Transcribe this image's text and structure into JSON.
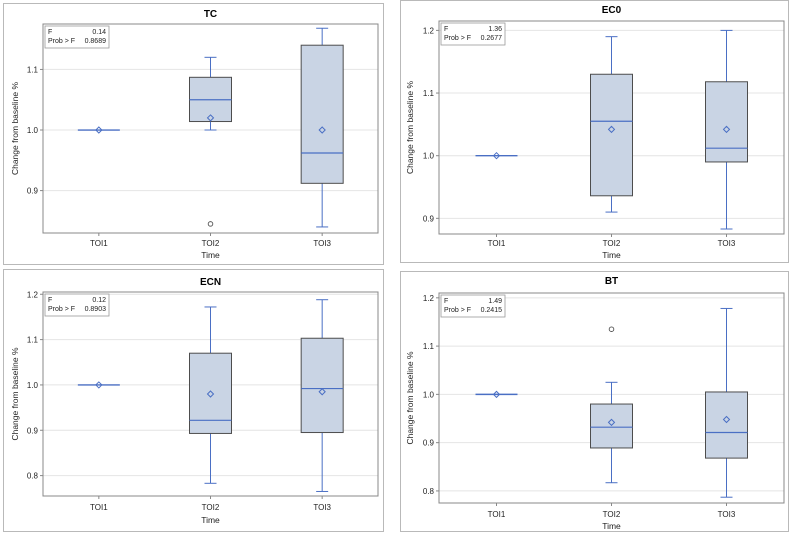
{
  "chart_data": [
    {
      "type": "box",
      "title": "TC",
      "xlabel": "Time",
      "ylabel": "Change from baseline %",
      "categories": [
        "TOI1",
        "TOI2",
        "TOI3"
      ],
      "ylim": [
        0.83,
        1.175
      ],
      "yticks": [
        "0.9",
        "1.0",
        "1.1"
      ],
      "ytick_values": [
        0.9,
        1.0,
        1.1
      ],
      "stats_labels": [
        "F",
        "Prob > F"
      ],
      "stats_values": [
        "0.14",
        "0.8689"
      ],
      "boxes": [
        {
          "min": 1.0,
          "q1": 1.0,
          "median": 1.0,
          "q3": 1.0,
          "max": 1.0,
          "mean": 1.0,
          "outliers": []
        },
        {
          "min": 1.0,
          "q1": 1.014,
          "median": 1.05,
          "q3": 1.087,
          "max": 1.12,
          "mean": 1.02,
          "outliers": [
            0.845
          ]
        },
        {
          "min": 0.84,
          "q1": 0.912,
          "median": 0.962,
          "q3": 1.14,
          "max": 1.168,
          "mean": 1.0,
          "outliers": []
        }
      ]
    },
    {
      "type": "box",
      "title": "EC0",
      "xlabel": "Time",
      "ylabel": "Change from baseline %",
      "categories": [
        "TOI1",
        "TOI2",
        "TOI3"
      ],
      "ylim": [
        0.875,
        1.215
      ],
      "yticks": [
        "0.9",
        "1.0",
        "1.1",
        "1.2"
      ],
      "ytick_values": [
        0.9,
        1.0,
        1.1,
        1.2
      ],
      "stats_labels": [
        "F",
        "Prob > F"
      ],
      "stats_values": [
        "1.36",
        "0.2677"
      ],
      "boxes": [
        {
          "min": 1.0,
          "q1": 1.0,
          "median": 1.0,
          "q3": 1.0,
          "max": 1.0,
          "mean": 1.0,
          "outliers": []
        },
        {
          "min": 0.91,
          "q1": 0.936,
          "median": 1.055,
          "q3": 1.13,
          "max": 1.19,
          "mean": 1.042,
          "outliers": []
        },
        {
          "min": 0.883,
          "q1": 0.99,
          "median": 1.012,
          "q3": 1.118,
          "max": 1.2,
          "mean": 1.042,
          "outliers": []
        }
      ]
    },
    {
      "type": "box",
      "title": "ECN",
      "xlabel": "Time",
      "ylabel": "Change from baseline %",
      "categories": [
        "TOI1",
        "TOI2",
        "TOI3"
      ],
      "ylim": [
        0.755,
        1.205
      ],
      "yticks": [
        "0.8",
        "0.9",
        "1.0",
        "1.1",
        "1.2"
      ],
      "ytick_values": [
        0.8,
        0.9,
        1.0,
        1.1,
        1.2
      ],
      "stats_labels": [
        "F",
        "Prob > F"
      ],
      "stats_values": [
        "0.12",
        "0.8903"
      ],
      "boxes": [
        {
          "min": 1.0,
          "q1": 1.0,
          "median": 1.0,
          "q3": 1.0,
          "max": 1.0,
          "mean": 1.0,
          "outliers": []
        },
        {
          "min": 0.783,
          "q1": 0.893,
          "median": 0.922,
          "q3": 1.07,
          "max": 1.172,
          "mean": 0.98,
          "outliers": []
        },
        {
          "min": 0.765,
          "q1": 0.895,
          "median": 0.992,
          "q3": 1.103,
          "max": 1.188,
          "mean": 0.985,
          "outliers": []
        }
      ]
    },
    {
      "type": "box",
      "title": "BT",
      "xlabel": "Time",
      "ylabel": "Change from baseline %",
      "categories": [
        "TOI1",
        "TOI2",
        "TOI3"
      ],
      "ylim": [
        0.775,
        1.21
      ],
      "yticks": [
        "0.8",
        "0.9",
        "1.0",
        "1.1",
        "1.2"
      ],
      "ytick_values": [
        0.8,
        0.9,
        1.0,
        1.1,
        1.2
      ],
      "stats_labels": [
        "F",
        "Prob > F"
      ],
      "stats_values": [
        "1.49",
        "0.2415"
      ],
      "boxes": [
        {
          "min": 1.0,
          "q1": 1.0,
          "median": 1.0,
          "q3": 1.0,
          "max": 1.0,
          "mean": 1.0,
          "outliers": []
        },
        {
          "min": 0.817,
          "q1": 0.889,
          "median": 0.932,
          "q3": 0.98,
          "max": 1.025,
          "mean": 0.942,
          "outliers": [
            1.135
          ]
        },
        {
          "min": 0.787,
          "q1": 0.868,
          "median": 0.921,
          "q3": 1.005,
          "max": 1.178,
          "mean": 0.948,
          "outliers": []
        }
      ]
    }
  ]
}
